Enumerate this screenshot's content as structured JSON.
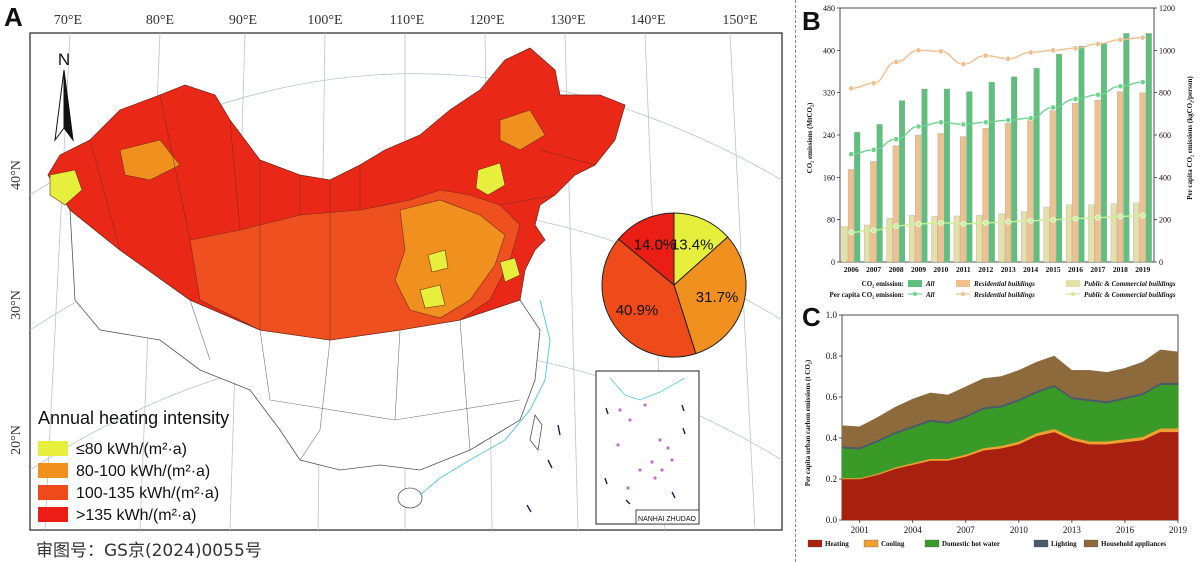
{
  "panels": {
    "a": "A",
    "b": "B",
    "c": "C"
  },
  "map": {
    "north": "N",
    "lon_labels": [
      "70°E",
      "80°E",
      "90°E",
      "100°E",
      "110°E",
      "120°E",
      "130°E",
      "140°E",
      "150°E"
    ],
    "lat_labels": [
      "40°N",
      "30°N",
      "20°N"
    ],
    "inset_label": "NANHAI ZHUDAO",
    "legend_title": "Annual heating intensity",
    "legend_items": [
      {
        "label": "≤80 kWh/(m²·a)",
        "color": "#e6f03c"
      },
      {
        "label": "80-100 kWh/(m²·a)",
        "color": "#f0901e"
      },
      {
        "label": "100-135 kWh/(m²·a)",
        "color": "#ee4a1a"
      },
      {
        "label": ">135 kWh/(m²·a)",
        "color": "#ea1e14"
      }
    ],
    "approval_text": "审图号：GS京(2024)0055号"
  },
  "chart_data": [
    {
      "type": "pie",
      "title": "",
      "slices": [
        {
          "label": "13.4%",
          "value": 13.4,
          "color": "#e6f03c"
        },
        {
          "label": "31.7%",
          "value": 31.7,
          "color": "#f0901e"
        },
        {
          "label": "40.9%",
          "value": 40.9,
          "color": "#ee4a1a"
        },
        {
          "label": "14.0%",
          "value": 14.0,
          "color": "#ea1e14"
        }
      ]
    },
    {
      "type": "bar",
      "categories": [
        "2006",
        "2007",
        "2008",
        "2009",
        "2010",
        "2011",
        "2012",
        "2013",
        "2014",
        "2015",
        "2016",
        "2017",
        "2018",
        "2019"
      ],
      "ylabel": "CO₂ emissions (MtCO₂)",
      "ylim": [
        0,
        480
      ],
      "yticks": [
        0,
        80,
        160,
        240,
        320,
        400,
        480
      ],
      "y2label": "Per capita CO₂ emissions (kgCO₂/person)",
      "y2lim": [
        0,
        1200
      ],
      "y2ticks": [
        0,
        200,
        400,
        600,
        800,
        1000,
        1200
      ],
      "series": [
        {
          "name": "All",
          "kind": "bar",
          "color": "#5fbf7c",
          "values": [
            245,
            260,
            305,
            327,
            327,
            322,
            340,
            350,
            366,
            393,
            408,
            414,
            432,
            432
          ]
        },
        {
          "name": "Residential buildings",
          "kind": "bar",
          "color": "#f0c08c",
          "values": [
            175,
            190,
            220,
            240,
            243,
            237,
            253,
            262,
            271,
            286,
            300,
            306,
            322,
            320
          ]
        },
        {
          "name": "Public & Commercial buildings",
          "kind": "bar",
          "color": "#e4e0a8",
          "values": [
            67,
            70,
            83,
            88,
            86,
            87,
            88,
            91,
            95,
            104,
            108,
            108,
            110,
            112
          ]
        },
        {
          "name": "All",
          "kind": "line",
          "color": "#6dd490",
          "values": [
            510,
            530,
            580,
            640,
            660,
            650,
            660,
            670,
            680,
            730,
            770,
            790,
            830,
            850
          ]
        },
        {
          "name": "Residential buildings",
          "kind": "line",
          "color": "#f0c08c",
          "values": [
            820,
            845,
            945,
            1000,
            995,
            935,
            975,
            960,
            990,
            1000,
            1010,
            1030,
            1050,
            1060
          ]
        },
        {
          "name": "Public & Commercial buildings",
          "kind": "line",
          "color": "#ccef9a",
          "values": [
            140,
            150,
            170,
            180,
            185,
            180,
            185,
            190,
            195,
            200,
            205,
            210,
            215,
            220
          ]
        }
      ],
      "legend": {
        "row1_title": "CO₂ emission:",
        "row2_title": "Per capita CO₂ emission:",
        "items": [
          "All",
          "Residential buildings",
          "Public & Commercial buildings"
        ]
      }
    },
    {
      "type": "area",
      "x": [
        2000,
        2001,
        2002,
        2003,
        2004,
        2005,
        2006,
        2007,
        2008,
        2009,
        2010,
        2011,
        2012,
        2013,
        2014,
        2015,
        2016,
        2017,
        2018,
        2019
      ],
      "xticks": [
        2001,
        2004,
        2007,
        2010,
        2013,
        2016,
        2019
      ],
      "ylabel": "Per capita urban carbon emissions (t CO₂)",
      "ylim": [
        0,
        1.0
      ],
      "yticks": [
        0.0,
        0.2,
        0.4,
        0.6,
        0.8,
        1.0
      ],
      "stacked": true,
      "series": [
        {
          "name": "Heating",
          "color": "#a8200f",
          "values": [
            0.2,
            0.2,
            0.22,
            0.25,
            0.27,
            0.29,
            0.29,
            0.31,
            0.34,
            0.35,
            0.37,
            0.41,
            0.43,
            0.39,
            0.37,
            0.37,
            0.38,
            0.39,
            0.43,
            0.43
          ]
        },
        {
          "name": "Cooling",
          "color": "#f0a030",
          "values": [
            0.005,
            0.005,
            0.006,
            0.007,
            0.008,
            0.009,
            0.009,
            0.01,
            0.011,
            0.012,
            0.013,
            0.014,
            0.015,
            0.014,
            0.014,
            0.014,
            0.015,
            0.016,
            0.017,
            0.018
          ]
        },
        {
          "name": "Domestic hot water",
          "color": "#3a9a28",
          "values": [
            0.145,
            0.14,
            0.154,
            0.163,
            0.172,
            0.181,
            0.171,
            0.18,
            0.189,
            0.188,
            0.197,
            0.196,
            0.205,
            0.186,
            0.196,
            0.186,
            0.195,
            0.204,
            0.213,
            0.212
          ]
        },
        {
          "name": "Lighting",
          "color": "#4a5a6a",
          "values": [
            0.01,
            0.01,
            0.01,
            0.01,
            0.01,
            0.01,
            0.01,
            0.01,
            0.01,
            0.01,
            0.01,
            0.01,
            0.01,
            0.01,
            0.01,
            0.01,
            0.01,
            0.01,
            0.01,
            0.01
          ]
        },
        {
          "name": "Household appliances",
          "color": "#8c6a3c",
          "values": [
            0.1,
            0.1,
            0.11,
            0.12,
            0.13,
            0.13,
            0.13,
            0.14,
            0.14,
            0.14,
            0.14,
            0.14,
            0.14,
            0.13,
            0.14,
            0.14,
            0.14,
            0.15,
            0.16,
            0.15
          ]
        }
      ]
    }
  ]
}
